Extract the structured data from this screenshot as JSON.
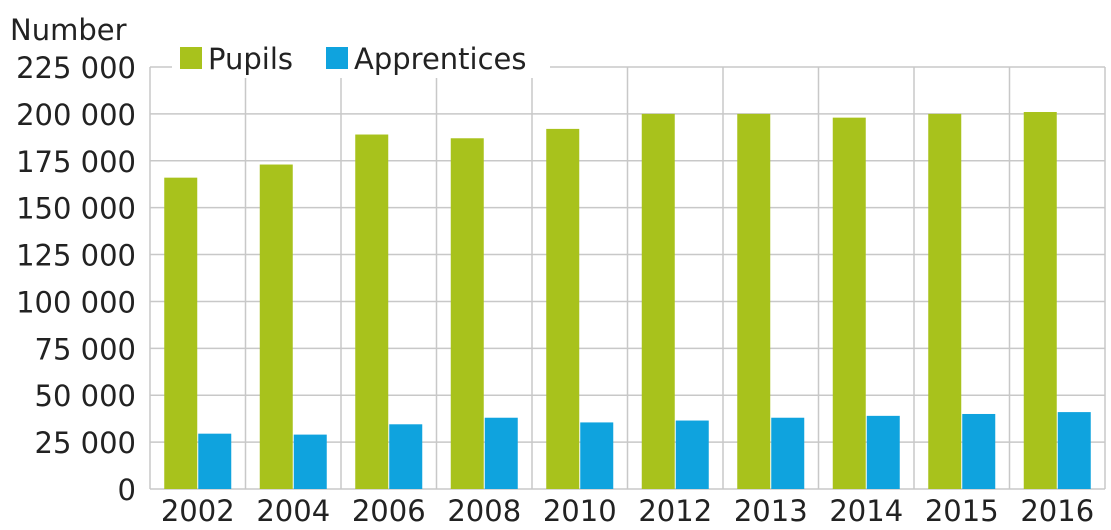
{
  "chart_data": {
    "type": "bar",
    "title": "",
    "ylabel": "Number",
    "xlabel": "",
    "categories": [
      "2002",
      "2004",
      "2006",
      "2008",
      "2010",
      "2012",
      "2013",
      "2014",
      "2015",
      "2016"
    ],
    "series": [
      {
        "name": "Pupils",
        "color": "#a8c21c",
        "values": [
          166000,
          173000,
          189000,
          187000,
          192000,
          200000,
          200000,
          198000,
          200000,
          201000
        ]
      },
      {
        "name": "Apprentices",
        "color": "#0fa3de",
        "values": [
          29500,
          29000,
          34500,
          38000,
          35500,
          36500,
          38000,
          39000,
          40000,
          41000
        ]
      }
    ],
    "ylim": [
      0,
      225000
    ],
    "yticks": [
      0,
      25000,
      50000,
      75000,
      100000,
      125000,
      150000,
      175000,
      200000,
      225000
    ],
    "ytick_labels": [
      "0",
      "25 000",
      "50 000",
      "75 000",
      "100 000",
      "125 000",
      "150 000",
      "175 000",
      "200 000",
      "225 000"
    ],
    "grid": true,
    "legend_position": "top-left",
    "colors": {
      "grid": "#c8c8c8",
      "text": "#222222",
      "background": "#ffffff"
    }
  }
}
